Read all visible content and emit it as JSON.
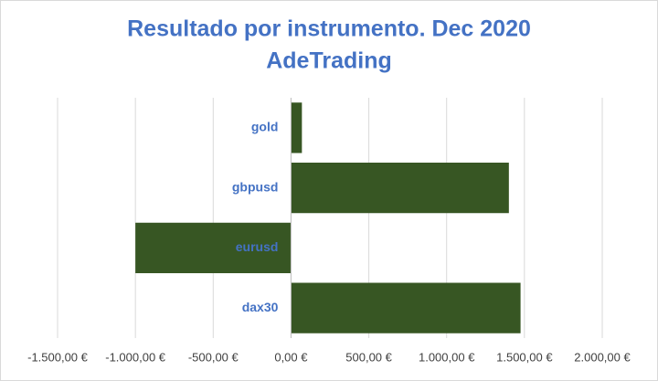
{
  "chart_data": {
    "type": "hbar",
    "title": "Resultado por instrumento. Dec 2020",
    "subtitle": "AdeTrading",
    "categories": [
      "gold",
      "gbpusd",
      "eurusd",
      "dax30"
    ],
    "values": [
      70,
      1400,
      -1000,
      1475
    ],
    "color": "#375623",
    "xlim": [
      -1500,
      2000
    ],
    "xticks": [
      {
        "value": -1500,
        "label": "-1.500,00 €"
      },
      {
        "value": -1000,
        "label": "-1.000,00 €"
      },
      {
        "value": -500,
        "label": "-500,00 €"
      },
      {
        "value": 0,
        "label": "0,00 €"
      },
      {
        "value": 500,
        "label": "500,00 €"
      },
      {
        "value": 1000,
        "label": "1.000,00 €"
      },
      {
        "value": 1500,
        "label": "1.500,00 €"
      },
      {
        "value": 2000,
        "label": "2.000,00 €"
      }
    ],
    "negative_tick_color": "#c00000",
    "grid": true
  }
}
